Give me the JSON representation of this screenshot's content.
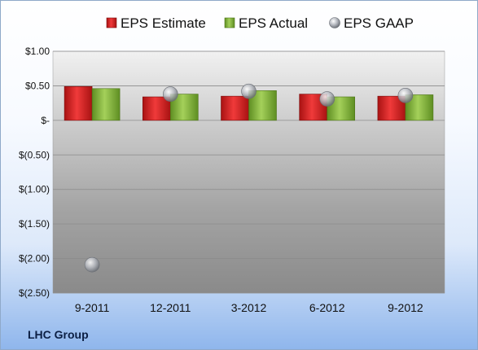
{
  "company": "LHC Group",
  "chart_data": {
    "type": "bar",
    "categories": [
      "9-2011",
      "12-2011",
      "3-2012",
      "6-2012",
      "9-2012"
    ],
    "series": [
      {
        "name": "EPS Estimate",
        "type": "bar",
        "color": "#d42424",
        "values": [
          0.49,
          0.34,
          0.35,
          0.38,
          0.35
        ]
      },
      {
        "name": "EPS Actual",
        "type": "bar",
        "color": "#86b83c",
        "values": [
          0.46,
          0.38,
          0.43,
          0.34,
          0.37
        ]
      },
      {
        "name": "EPS GAAP",
        "type": "scatter",
        "color": "#b8bcc4",
        "values": [
          -2.09,
          0.38,
          0.42,
          0.31,
          0.36
        ]
      }
    ],
    "y_ticks": [
      1.0,
      0.5,
      0,
      -0.5,
      -1.0,
      -1.5,
      -2.0,
      -2.5
    ],
    "y_tick_labels": [
      "$1.00",
      "$0.50",
      "$-",
      "$(0.50)",
      "$(1.00)",
      "$(1.50)",
      "$(2.00)",
      "$(2.50)"
    ],
    "ylim": [
      -2.5,
      1.0
    ],
    "grid": true,
    "legend_position": "top"
  }
}
